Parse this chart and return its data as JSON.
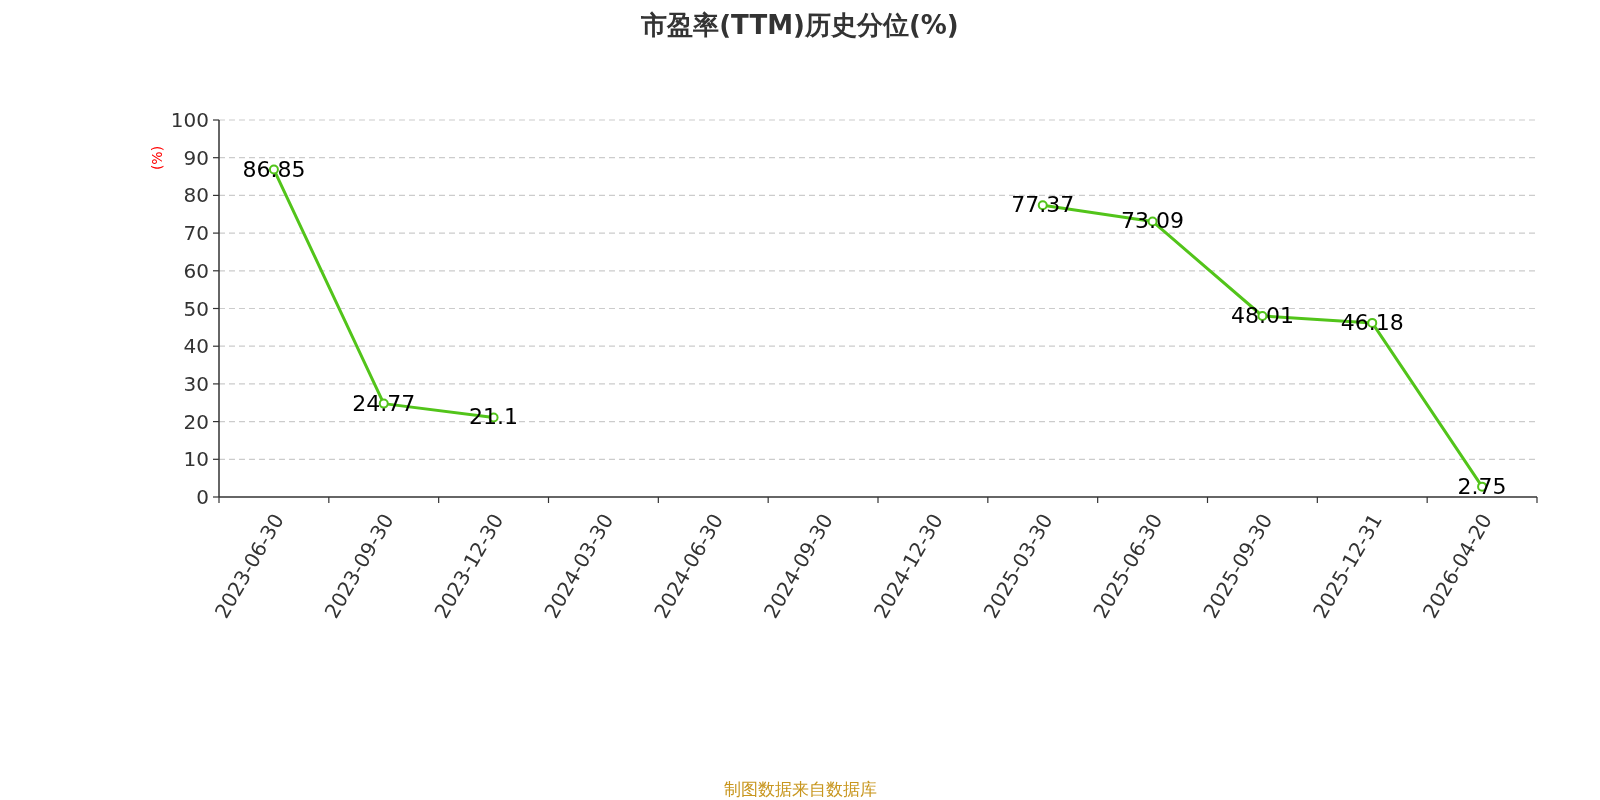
{
  "chart_data": {
    "type": "line",
    "title": "市盈率(TTM)历史分位(%)",
    "ylabel": "(%)",
    "categories": [
      "2023-06-30",
      "2023-09-30",
      "2023-12-30",
      "2024-03-30",
      "2024-06-30",
      "2024-09-30",
      "2024-12-30",
      "2025-03-30",
      "2025-06-30",
      "2025-09-30",
      "2025-12-31",
      "2026-04-20"
    ],
    "values": [
      86.85,
      24.77,
      21.1,
      null,
      null,
      null,
      null,
      77.37,
      73.09,
      48.01,
      46.18,
      2.75
    ],
    "color": "#52c41a",
    "ylim": [
      0,
      100
    ],
    "yticks": [
      0,
      10,
      20,
      30,
      40,
      50,
      60,
      70,
      80,
      90,
      100
    ],
    "grid": "y",
    "data_labels": true,
    "marker": "circle",
    "line_style": "solid",
    "annotations": [
      "制图数据来自数据库"
    ]
  }
}
